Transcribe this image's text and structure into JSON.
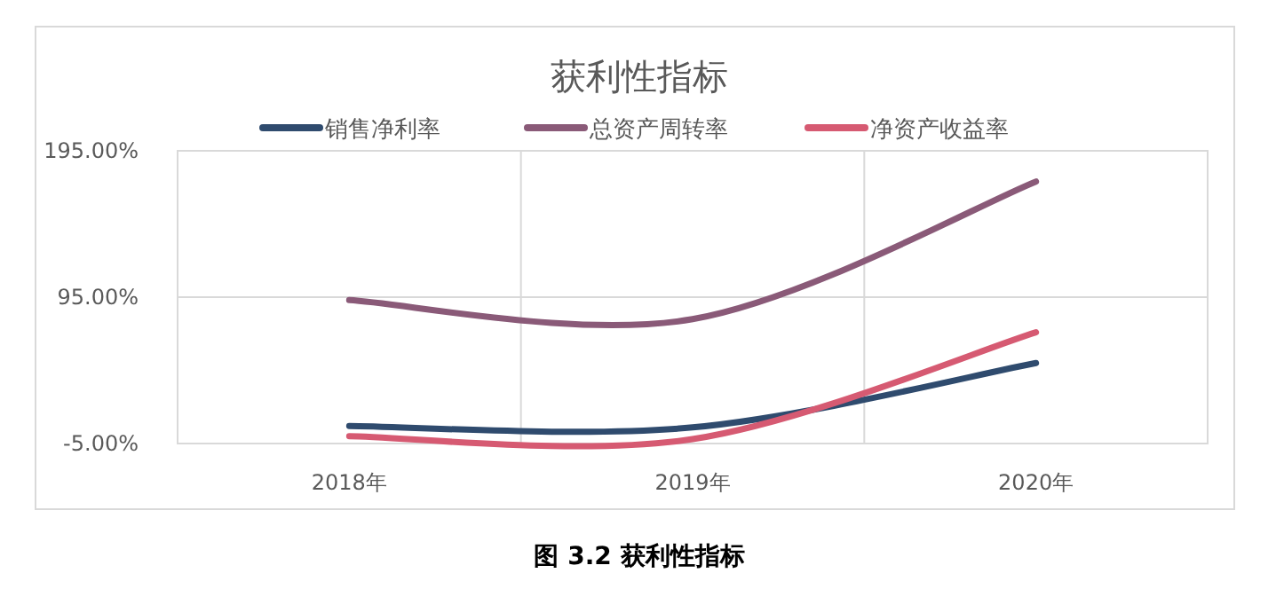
{
  "chart_data": {
    "type": "line",
    "title": "获利性指标",
    "categories": [
      "2018年",
      "2019年",
      "2020年"
    ],
    "series": [
      {
        "name": "销售净利率",
        "color": "#2f4b6e",
        "values": [
          7,
          6,
          50
        ]
      },
      {
        "name": "总资产周转率",
        "color": "#8a5a78",
        "values": [
          93,
          80,
          174
        ]
      },
      {
        "name": "净资产收益率",
        "color": "#d65a72",
        "values": [
          0,
          -2,
          71
        ]
      }
    ],
    "ylim": [
      -5,
      195
    ],
    "yticks": [
      {
        "value": -5,
        "label": "-5.00%"
      },
      {
        "value": 95,
        "label": "95.00%"
      },
      {
        "value": 195,
        "label": "195.00%"
      }
    ],
    "grid": true,
    "legend": "top",
    "line_style": "solid",
    "marker": "none",
    "annotations": [
      "图 3.2 获利性指标"
    ]
  }
}
